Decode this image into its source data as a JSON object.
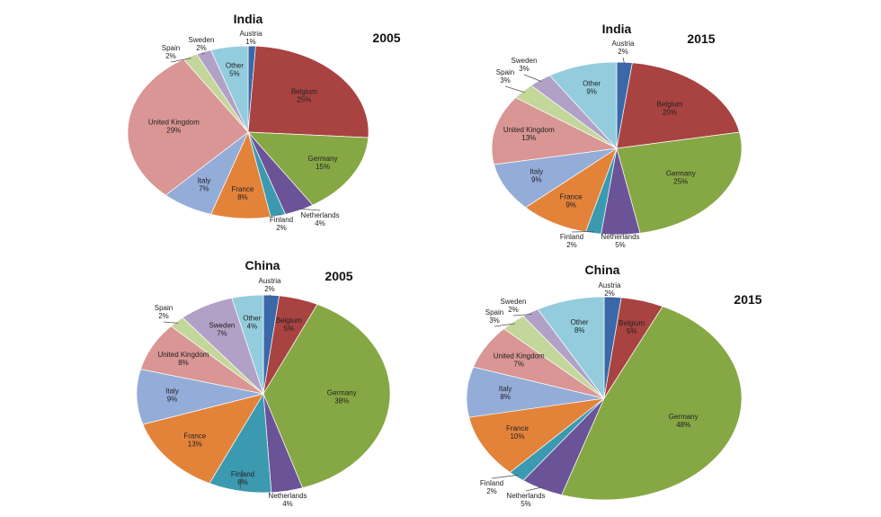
{
  "palette": {
    "Austria": "#3A68A8",
    "Belgium": "#A84341",
    "Germany": "#86A844",
    "Netherlands": "#6B5398",
    "Finland": "#3B9AB0",
    "France": "#E3833A",
    "Italy": "#94ADD8",
    "United Kingdom": "#D99694",
    "Spain": "#C4D79B",
    "Sweden": "#B2A1C7",
    "Other": "#93CDDD"
  },
  "chart_data": [
    {
      "type": "pie",
      "title": "India",
      "subtitle": "2005",
      "slices": [
        {
          "label": "Austria",
          "value": 1,
          "value_label": "1%"
        },
        {
          "label": "Belgium",
          "value": 25,
          "value_label": "25%"
        },
        {
          "label": "Germany",
          "value": 15,
          "value_label": "15%"
        },
        {
          "label": "Netherlands",
          "value": 4,
          "value_label": "4%"
        },
        {
          "label": "Finland",
          "value": 2,
          "value_label": "2%"
        },
        {
          "label": "France",
          "value": 8,
          "value_label": "8%"
        },
        {
          "label": "Italy",
          "value": 7,
          "value_label": "7%"
        },
        {
          "label": "United Kingdom",
          "value": 29,
          "value_label": "29%"
        },
        {
          "label": "Spain",
          "value": 2,
          "value_label": "2%"
        },
        {
          "label": "Sweden",
          "value": 2,
          "value_label": "2%"
        },
        {
          "label": "Other",
          "value": 5,
          "value_label": "5%"
        }
      ]
    },
    {
      "type": "pie",
      "title": "India",
      "subtitle": "2015",
      "slices": [
        {
          "label": "Austria",
          "value": 2,
          "value_label": "2%"
        },
        {
          "label": "Belgium",
          "value": 20,
          "value_label": "20%"
        },
        {
          "label": "Germany",
          "value": 25,
          "value_label": "25%"
        },
        {
          "label": "Netherlands",
          "value": 5,
          "value_label": "5%"
        },
        {
          "label": "Finland",
          "value": 2,
          "value_label": "2%"
        },
        {
          "label": "France",
          "value": 9,
          "value_label": "9%"
        },
        {
          "label": "Italy",
          "value": 9,
          "value_label": "9%"
        },
        {
          "label": "United Kingdom",
          "value": 13,
          "value_label": "13%"
        },
        {
          "label": "Spain",
          "value": 3,
          "value_label": "3%"
        },
        {
          "label": "Sweden",
          "value": 3,
          "value_label": "3%"
        },
        {
          "label": "Other",
          "value": 9,
          "value_label": "9%"
        }
      ]
    },
    {
      "type": "pie",
      "title": "China",
      "subtitle": "2005",
      "slices": [
        {
          "label": "Austria",
          "value": 2,
          "value_label": "2%"
        },
        {
          "label": "Belgium",
          "value": 5,
          "value_label": "5%"
        },
        {
          "label": "Germany",
          "value": 38,
          "value_label": "38%"
        },
        {
          "label": "Netherlands",
          "value": 4,
          "value_label": "4%"
        },
        {
          "label": "Finland",
          "value": 8,
          "value_label": "8%"
        },
        {
          "label": "France",
          "value": 13,
          "value_label": "13%"
        },
        {
          "label": "Italy",
          "value": 9,
          "value_label": "9%"
        },
        {
          "label": "United Kingdom",
          "value": 8,
          "value_label": "8%"
        },
        {
          "label": "Spain",
          "value": 2,
          "value_label": "2%"
        },
        {
          "label": "Sweden",
          "value": 7,
          "value_label": "7%"
        },
        {
          "label": "Other",
          "value": 4,
          "value_label": "4%"
        }
      ]
    },
    {
      "type": "pie",
      "title": "China",
      "subtitle": "2015",
      "slices": [
        {
          "label": "Austria",
          "value": 2,
          "value_label": "2%"
        },
        {
          "label": "Belgium",
          "value": 5,
          "value_label": "5%"
        },
        {
          "label": "Germany",
          "value": 48,
          "value_label": "48%"
        },
        {
          "label": "Netherlands",
          "value": 5,
          "value_label": "5%"
        },
        {
          "label": "Finland",
          "value": 2,
          "value_label": "2%"
        },
        {
          "label": "France",
          "value": 10,
          "value_label": "10%"
        },
        {
          "label": "Italy",
          "value": 8,
          "value_label": "8%"
        },
        {
          "label": "United Kingdom",
          "value": 7,
          "value_label": "7%"
        },
        {
          "label": "Spain",
          "value": 3,
          "value_label": "3%"
        },
        {
          "label": "Sweden",
          "value": 2,
          "value_label": "2%"
        },
        {
          "label": "Other",
          "value": 8,
          "value_label": "8%"
        }
      ]
    }
  ]
}
